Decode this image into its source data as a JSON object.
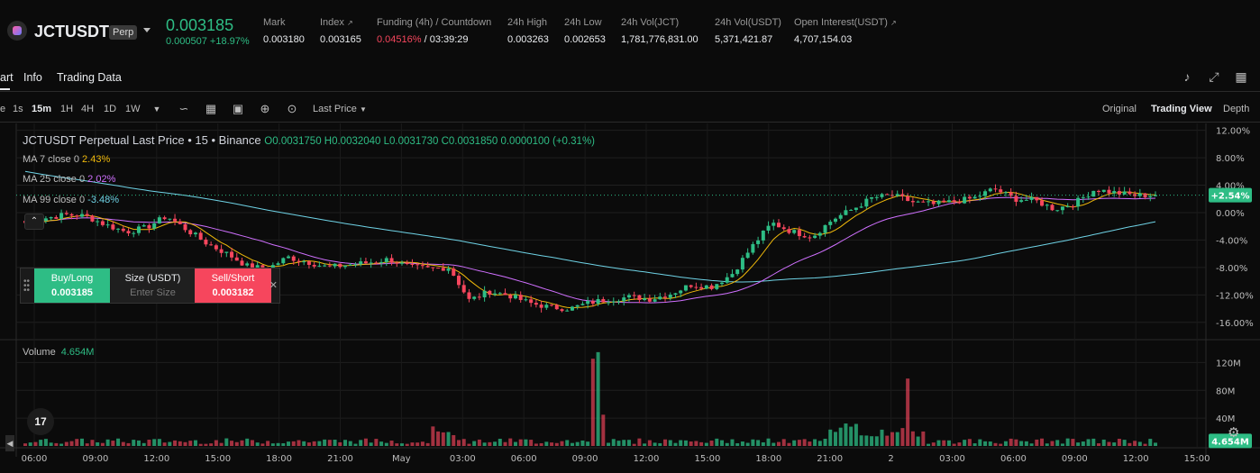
{
  "header": {
    "symbol": "JCTUSDT",
    "badge": "Perp",
    "last_price": "0.003185",
    "change": "0.000507 +18.97%",
    "stats": [
      {
        "label": "Mark",
        "value": "0.003180"
      },
      {
        "label": "Index",
        "value": "0.003165"
      },
      {
        "label": "Funding (4h) / Countdown",
        "value_red": "0.04516%",
        "value": "/ 03:39:29"
      },
      {
        "label": "24h High",
        "value": "0.003263"
      },
      {
        "label": "24h Low",
        "value": "0.002653"
      },
      {
        "label": "24h Vol(JCT)",
        "value": "1,781,776,831.00"
      },
      {
        "label": "24h Vol(USDT)",
        "value": "5,371,421.87"
      },
      {
        "label": "Open Interest(USDT)",
        "value": "4,707,154.03"
      }
    ]
  },
  "tabs": {
    "chart": "art",
    "info": "Info",
    "trading_data": "Trading Data"
  },
  "toolbar": {
    "time_prefix": "e",
    "timeframes": [
      "1s",
      "15m",
      "1H",
      "4H",
      "1D",
      "1W"
    ],
    "active_timeframe": "15m",
    "price_type": "Last Price",
    "views": {
      "original": "Original",
      "trading_view": "Trading View",
      "depth": "Depth"
    }
  },
  "legend": {
    "title": "JCTUSDT Perpetual Last Price • 15 • Binance",
    "ohlc": "O0.0031750 H0.0032040 L0.0031730 C0.0031850 0.0000100 (+0.31%)",
    "ma": [
      {
        "label": "MA 7 close 0",
        "value": "2.43%",
        "color": "#f0b90b"
      },
      {
        "label": "MA 25 close 0",
        "value": "2.02%",
        "color": "#d070ff"
      },
      {
        "label": "MA 99 close 0",
        "value": "-3.48%",
        "color": "#6fd3e6"
      }
    ],
    "volume_label": "Volume",
    "volume_value": "4.654M"
  },
  "order_panel": {
    "buy_label": "Buy/Long",
    "buy_price": "0.003185",
    "size_label": "Size (USDT)",
    "size_placeholder": "Enter Size",
    "sell_label": "Sell/Short",
    "sell_price": "0.003182"
  },
  "price_axis": [
    "12.00%",
    "8.00%",
    "4.00%",
    "0.00%",
    "-4.00%",
    "-8.00%",
    "-12.00%",
    "-16.00%"
  ],
  "current_badge": "+2.54%",
  "volume_axis": [
    "120M",
    "80M",
    "40M"
  ],
  "volume_badge": "4.654M",
  "time_axis": [
    "06:00",
    "09:00",
    "12:00",
    "15:00",
    "18:00",
    "21:00",
    "May",
    "03:00",
    "06:00",
    "09:00",
    "12:00",
    "15:00",
    "18:00",
    "21:00",
    "2",
    "03:00",
    "06:00",
    "09:00",
    "12:00",
    "15:00"
  ],
  "colors": {
    "up": "#2ebd85",
    "down": "#f6465d",
    "ma7": "#f0b90b",
    "ma25": "#d070ff",
    "ma99": "#6fd3e6"
  },
  "chart_data": {
    "type": "candlestick",
    "y_unit": "percent change",
    "ylim": [
      -18,
      13
    ],
    "x_labels": [
      "06:00",
      "09:00",
      "12:00",
      "15:00",
      "18:00",
      "21:00",
      "May",
      "03:00",
      "06:00",
      "09:00",
      "12:00",
      "15:00",
      "18:00",
      "21:00",
      "2",
      "03:00",
      "06:00",
      "09:00",
      "12:00",
      "15:00"
    ],
    "close_path": [
      -1.5,
      -0.8,
      -0.3,
      -0.5,
      -1.8,
      -2.8,
      -2.2,
      -0.5,
      -2.5,
      -4.5,
      -6.0,
      -7.8,
      -8.2,
      -6.5,
      -7.2,
      -8.0,
      -7.6,
      -7.3,
      -6.8,
      -7.9,
      -8.2,
      -8.0,
      -12.8,
      -11.5,
      -12.1,
      -13.2,
      -13.8,
      -14.0,
      -13.1,
      -12.6,
      -12.3,
      -12.6,
      -11.8,
      -10.5,
      -10.8,
      -9.0,
      -5.0,
      -1.5,
      -2.8,
      -3.5,
      -1.0,
      0.5,
      2.2,
      2.5,
      1.5,
      1.2,
      1.6,
      2.1,
      3.5,
      2.0,
      1.8,
      0.5,
      1.4,
      3.4,
      2.9,
      2.5,
      2.54
    ],
    "volume_unit": "M",
    "volume_ylim": [
      0,
      140
    ],
    "volume_peaks": [
      {
        "label": "09:00 May",
        "value": 135
      },
      {
        "label": "2 21:00",
        "value": 97
      }
    ],
    "current_volume": 4.654
  }
}
